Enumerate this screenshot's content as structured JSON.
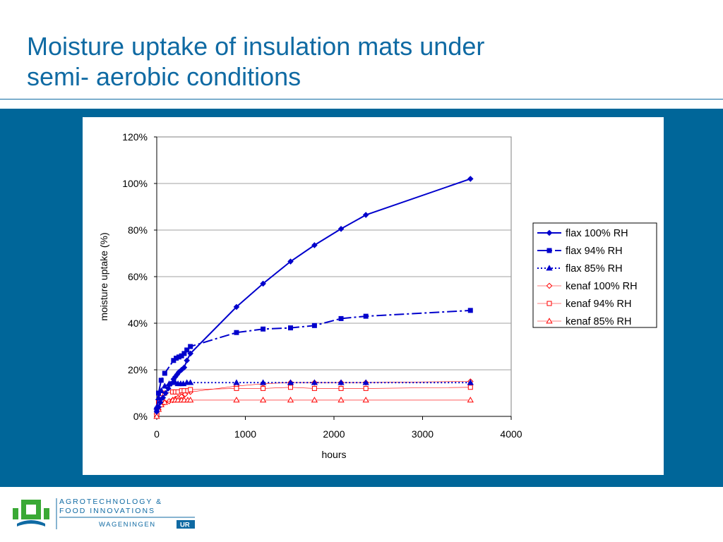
{
  "slide": {
    "title_line1": "Moisture uptake of insulation mats under",
    "title_line2": "semi- aerobic conditions"
  },
  "colors": {
    "brand_blue": "#0f6aa3",
    "band_blue": "#006699",
    "flax": "#0000cc",
    "kenaf": "#ff0000"
  },
  "logo": {
    "line1": "AGROTECHNOLOGY &",
    "line2": "FOOD INNOVATIONS",
    "line3_a": "WAGENINGEN",
    "line3_b": "UR"
  },
  "chart_data": {
    "type": "line",
    "title": "",
    "xlabel": "hours",
    "ylabel": "moisture uptake (%)",
    "xlim": [
      0,
      4000
    ],
    "ylim": [
      0,
      1.2
    ],
    "xticks": [
      "0",
      "1000",
      "2000",
      "3000",
      "4000"
    ],
    "yticks": [
      "0%",
      "20%",
      "40%",
      "60%",
      "80%",
      "100%",
      "120%"
    ],
    "grid": "horizontal",
    "legend_position": "right",
    "series": [
      {
        "name": "flax 100% RH",
        "color": "#0000cc",
        "line": "solid",
        "marker": "diamond-filled",
        "points": [
          [
            0,
            0.02
          ],
          [
            20,
            0.04
          ],
          [
            40,
            0.06
          ],
          [
            70,
            0.08
          ],
          [
            100,
            0.1
          ],
          [
            130,
            0.12
          ],
          [
            160,
            0.14
          ],
          [
            190,
            0.16
          ],
          [
            210,
            0.17
          ],
          [
            230,
            0.18
          ],
          [
            250,
            0.19
          ],
          [
            280,
            0.2
          ],
          [
            310,
            0.21
          ],
          [
            340,
            0.24
          ],
          [
            380,
            0.27
          ],
          [
            900,
            0.47
          ],
          [
            1200,
            0.57
          ],
          [
            1510,
            0.665
          ],
          [
            1780,
            0.735
          ],
          [
            2080,
            0.805
          ],
          [
            2360,
            0.865
          ],
          [
            3540,
            1.02
          ]
        ]
      },
      {
        "name": "flax 94% RH",
        "color": "#0000cc",
        "line": "dashdot",
        "marker": "square-filled",
        "points": [
          [
            0,
            0.03
          ],
          [
            20,
            0.1
          ],
          [
            50,
            0.155
          ],
          [
            90,
            0.185
          ],
          [
            190,
            0.24
          ],
          [
            220,
            0.25
          ],
          [
            250,
            0.255
          ],
          [
            280,
            0.26
          ],
          [
            310,
            0.27
          ],
          [
            340,
            0.285
          ],
          [
            380,
            0.3
          ],
          [
            900,
            0.36
          ],
          [
            1200,
            0.375
          ],
          [
            1510,
            0.38
          ],
          [
            1780,
            0.39
          ],
          [
            2080,
            0.42
          ],
          [
            2360,
            0.43
          ],
          [
            3540,
            0.455
          ]
        ]
      },
      {
        "name": "flax 85% RH",
        "color": "#0000cc",
        "line": "dotted",
        "marker": "triangle-filled",
        "points": [
          [
            0,
            0.04
          ],
          [
            20,
            0.08
          ],
          [
            50,
            0.11
          ],
          [
            90,
            0.13
          ],
          [
            140,
            0.14
          ],
          [
            180,
            0.145
          ],
          [
            210,
            0.145
          ],
          [
            240,
            0.14
          ],
          [
            270,
            0.14
          ],
          [
            300,
            0.14
          ],
          [
            340,
            0.145
          ],
          [
            380,
            0.145
          ],
          [
            900,
            0.145
          ],
          [
            1200,
            0.145
          ],
          [
            1510,
            0.145
          ],
          [
            1780,
            0.145
          ],
          [
            2080,
            0.145
          ],
          [
            2360,
            0.145
          ],
          [
            3540,
            0.145
          ]
        ]
      },
      {
        "name": "kenaf 100% RH",
        "color": "#ff0000",
        "line": "solid-thin",
        "marker": "diamond-open",
        "points": [
          [
            0,
            0.01
          ],
          [
            20,
            0.03
          ],
          [
            50,
            0.05
          ],
          [
            90,
            0.06
          ],
          [
            140,
            0.065
          ],
          [
            180,
            0.07
          ],
          [
            210,
            0.075
          ],
          [
            240,
            0.08
          ],
          [
            280,
            0.085
          ],
          [
            320,
            0.095
          ],
          [
            380,
            0.105
          ],
          [
            900,
            0.13
          ],
          [
            1200,
            0.14
          ],
          [
            1510,
            0.145
          ],
          [
            1780,
            0.145
          ],
          [
            2080,
            0.145
          ],
          [
            2360,
            0.145
          ],
          [
            3540,
            0.15
          ]
        ]
      },
      {
        "name": "kenaf 94% RH",
        "color": "#ff0000",
        "line": "solid-thin",
        "marker": "square-open",
        "points": [
          [
            0,
            0.01
          ],
          [
            20,
            0.06
          ],
          [
            50,
            0.08
          ],
          [
            90,
            0.1
          ],
          [
            180,
            0.105
          ],
          [
            210,
            0.105
          ],
          [
            240,
            0.105
          ],
          [
            280,
            0.11
          ],
          [
            310,
            0.11
          ],
          [
            350,
            0.11
          ],
          [
            380,
            0.115
          ],
          [
            900,
            0.12
          ],
          [
            1200,
            0.12
          ],
          [
            1510,
            0.125
          ],
          [
            1780,
            0.12
          ],
          [
            2080,
            0.12
          ],
          [
            2360,
            0.12
          ],
          [
            3540,
            0.125
          ]
        ]
      },
      {
        "name": "kenaf 85% RH",
        "color": "#ff0000",
        "line": "solid-thin",
        "marker": "triangle-open",
        "points": [
          [
            0,
            0.0
          ],
          [
            20,
            0.03
          ],
          [
            50,
            0.05
          ],
          [
            90,
            0.06
          ],
          [
            180,
            0.07
          ],
          [
            210,
            0.07
          ],
          [
            240,
            0.07
          ],
          [
            280,
            0.07
          ],
          [
            310,
            0.07
          ],
          [
            350,
            0.07
          ],
          [
            380,
            0.07
          ],
          [
            900,
            0.07
          ],
          [
            1200,
            0.07
          ],
          [
            1510,
            0.07
          ],
          [
            1780,
            0.07
          ],
          [
            2080,
            0.07
          ],
          [
            2360,
            0.07
          ],
          [
            3540,
            0.07
          ]
        ]
      }
    ]
  }
}
